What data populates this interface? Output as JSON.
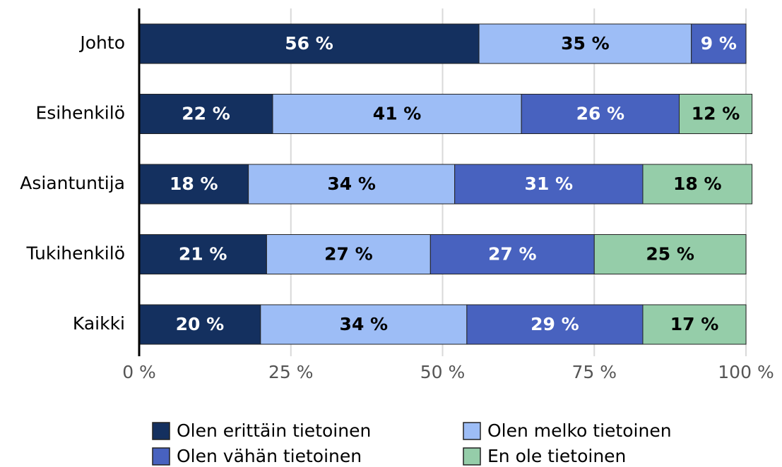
{
  "chart_data": {
    "type": "stacked_barh",
    "categories": [
      "Johto",
      "Esihenkilö",
      "Asiantuntija",
      "Tukihenkilö",
      "Kaikki"
    ],
    "series": [
      {
        "name": "Olen erittäin tietoinen",
        "color": "#14305f",
        "values": [
          56,
          22,
          18,
          21,
          20
        ],
        "value_labels": [
          "56 %",
          "22 %",
          "18 %",
          "21 %",
          "20 %"
        ]
      },
      {
        "name": "Olen melko tietoinen",
        "color": "#9dbdf6",
        "values": [
          35,
          41,
          34,
          27,
          34
        ],
        "value_labels": [
          "35 %",
          "41 %",
          "34 %",
          "27 %",
          "34 %"
        ]
      },
      {
        "name": "Olen vähän tietoinen",
        "color": "#4862bf",
        "values": [
          9,
          26,
          31,
          27,
          29
        ],
        "value_labels": [
          "9 %",
          "26 %",
          "31 %",
          "27 %",
          "29 %"
        ]
      },
      {
        "name": "En ole tietoinen",
        "color": "#95cda9",
        "values": [
          null,
          12,
          18,
          25,
          17
        ],
        "value_labels": [
          null,
          "12 %",
          "18 %",
          "25 %",
          "17 %"
        ]
      }
    ],
    "xlim": [
      0,
      100
    ],
    "xticks": [
      {
        "value": 0,
        "label": "0 %"
      },
      {
        "value": 25,
        "label": "25 %"
      },
      {
        "value": 50,
        "label": "50 %"
      },
      {
        "value": 75,
        "label": "75 %"
      },
      {
        "value": 100,
        "label": "100 %"
      }
    ],
    "grid": true
  }
}
